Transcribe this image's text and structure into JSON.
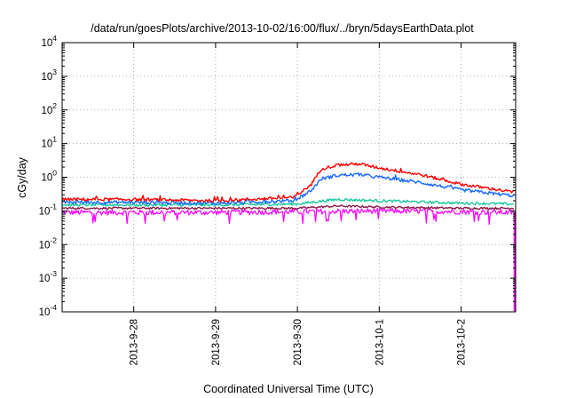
{
  "chart_data": {
    "type": "line",
    "title": "/data/run/goesPlots/archive/2013-10-02/16:00/flux/../bryn/5daysEarthData.plot",
    "xlabel": "Coordinated Universal Time (UTC)",
    "ylabel": "cGy/day",
    "yscale": "log",
    "ylim": [
      0.0001,
      10000
    ],
    "y_ticks": [
      {
        "base": "10",
        "exp": "-4",
        "value": 0.0001
      },
      {
        "base": "10",
        "exp": "-3",
        "value": 0.001
      },
      {
        "base": "10",
        "exp": "-2",
        "value": 0.01
      },
      {
        "base": "10",
        "exp": "-1",
        "value": 0.1
      },
      {
        "base": "10",
        "exp": "0",
        "value": 1
      },
      {
        "base": "10",
        "exp": "1",
        "value": 10
      },
      {
        "base": "10",
        "exp": "2",
        "value": 100
      },
      {
        "base": "10",
        "exp": "3",
        "value": 1000
      },
      {
        "base": "10",
        "exp": "4",
        "value": 10000
      }
    ],
    "xlim": [
      "2013-09-27 03:00",
      "2013-10-02 16:00"
    ],
    "x_ticks": [
      "2013-9-28",
      "2013-9-29",
      "2013-9-30",
      "2013-10-1",
      "2013-10-2"
    ],
    "grid": true,
    "legend": "none",
    "series": [
      {
        "color": "#ff00ff",
        "x": [
          "2013-09-27 03:00",
          "2013-09-28 00:00",
          "2013-09-29 00:00",
          "2013-09-30 00:00",
          "2013-10-01 00:00",
          "2013-10-02 00:00",
          "2013-10-02 15:40"
        ],
        "y": [
          0.09,
          0.09,
          0.09,
          0.095,
          0.1,
          0.095,
          0.09
        ]
      },
      {
        "color": "#8b1a4a",
        "x": [
          "2013-09-27 03:00",
          "2013-09-28 00:00",
          "2013-09-29 00:00",
          "2013-09-30 00:00",
          "2013-09-30 12:00",
          "2013-10-01 00:00",
          "2013-10-02 00:00",
          "2013-10-02 15:40"
        ],
        "y": [
          0.12,
          0.12,
          0.12,
          0.12,
          0.14,
          0.13,
          0.12,
          0.12
        ]
      },
      {
        "color": "#1ec8a0",
        "x": [
          "2013-09-27 03:00",
          "2013-09-28 00:00",
          "2013-09-29 00:00",
          "2013-09-30 00:00",
          "2013-09-30 06:00",
          "2013-09-30 12:00",
          "2013-10-01 00:00",
          "2013-10-02 00:00",
          "2013-10-02 15:40"
        ],
        "y": [
          0.15,
          0.15,
          0.15,
          0.16,
          0.19,
          0.22,
          0.2,
          0.17,
          0.16
        ]
      },
      {
        "color": "#1a6aff",
        "x": [
          "2013-09-27 03:00",
          "2013-09-28 00:00",
          "2013-09-29 00:00",
          "2013-09-29 23:00",
          "2013-09-30 04:00",
          "2013-09-30 07:00",
          "2013-09-30 12:00",
          "2013-09-30 18:00",
          "2013-10-01 00:00",
          "2013-10-01 12:00",
          "2013-10-02 00:00",
          "2013-10-02 15:40"
        ],
        "y": [
          0.18,
          0.18,
          0.17,
          0.2,
          0.4,
          0.9,
          1.15,
          1.2,
          1.0,
          0.7,
          0.42,
          0.28
        ]
      },
      {
        "color": "#ff0000",
        "x": [
          "2013-09-27 03:00",
          "2013-09-28 00:00",
          "2013-09-29 00:00",
          "2013-09-29 23:00",
          "2013-09-30 04:00",
          "2013-09-30 07:00",
          "2013-09-30 12:00",
          "2013-09-30 18:00",
          "2013-10-01 00:00",
          "2013-10-01 12:00",
          "2013-10-02 00:00",
          "2013-10-02 15:40"
        ],
        "y": [
          0.22,
          0.22,
          0.2,
          0.25,
          0.6,
          1.8,
          2.3,
          2.5,
          1.9,
          1.2,
          0.62,
          0.36
        ]
      }
    ]
  }
}
